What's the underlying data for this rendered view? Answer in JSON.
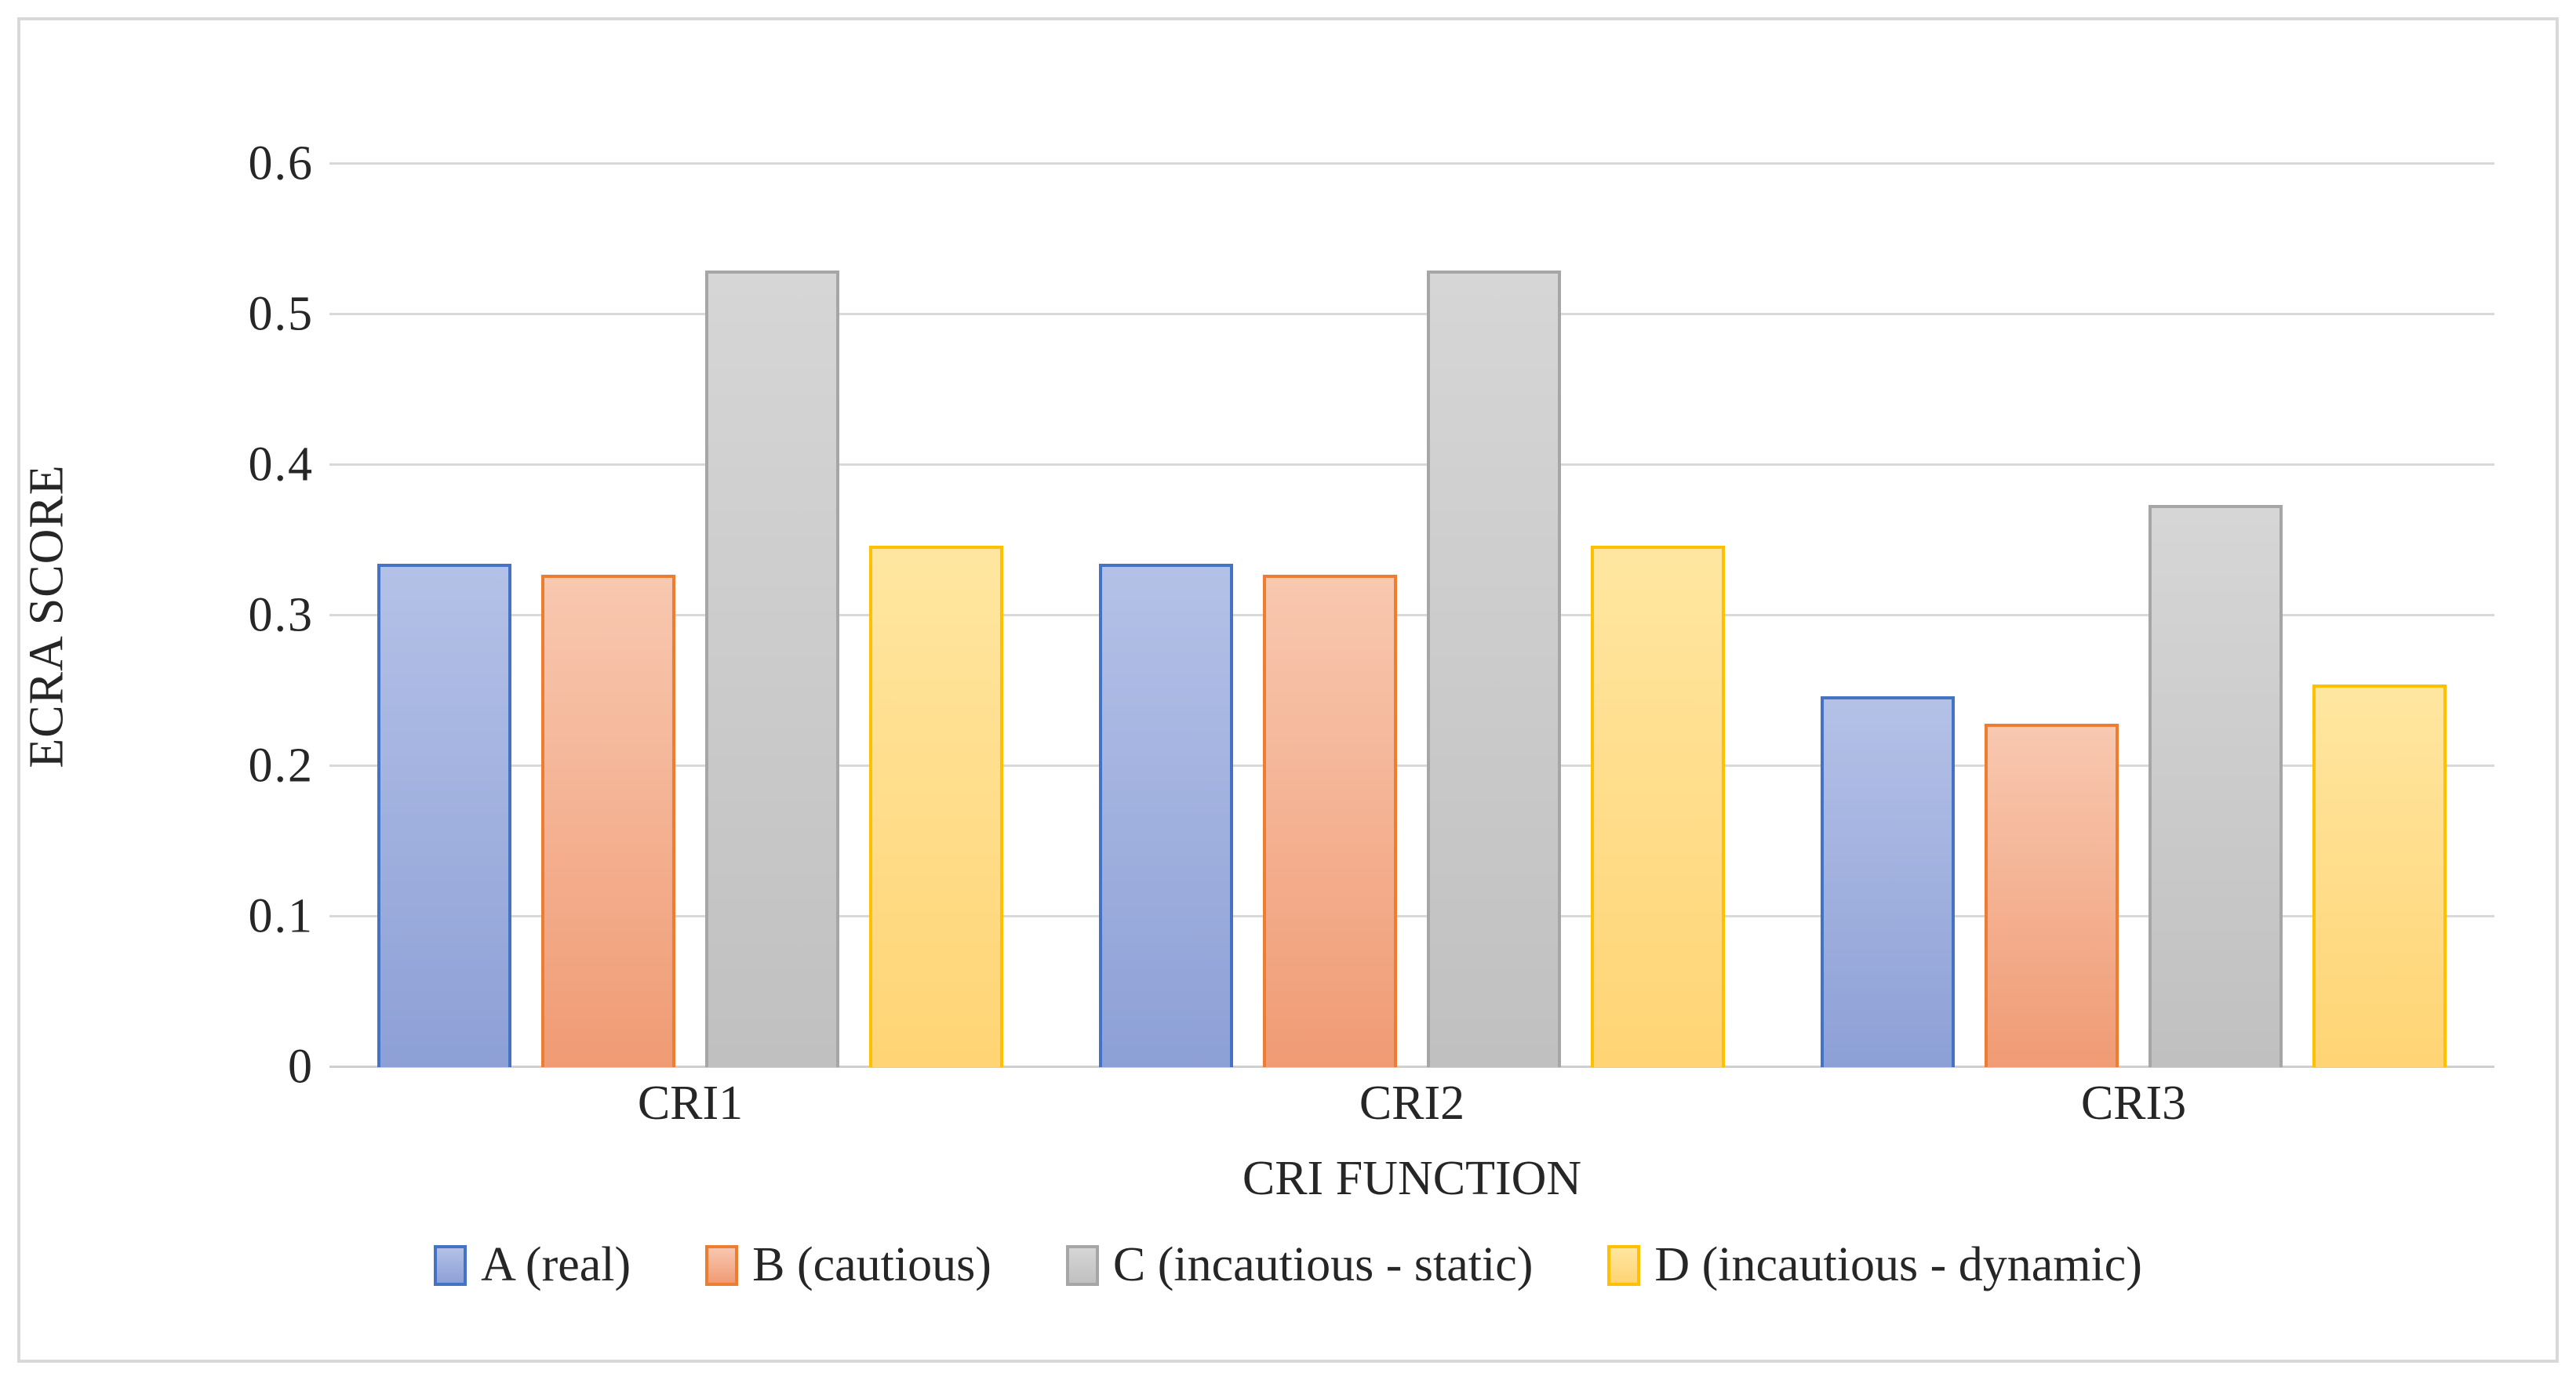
{
  "chart_data": {
    "type": "bar",
    "title": "",
    "categories": [
      "CRI1",
      "CRI2",
      "CRI3"
    ],
    "series": [
      {
        "name": "A (real)",
        "values": [
          0.332,
          0.332,
          0.244
        ],
        "border": "#4472C4",
        "fill_top": "#B4C1E7",
        "fill_bottom": "#8DA0D6"
      },
      {
        "name": "B (cautious)",
        "values": [
          0.325,
          0.325,
          0.226
        ],
        "border": "#ED7D31",
        "fill_top": "#F8C8B0",
        "fill_bottom": "#F09B74"
      },
      {
        "name": "C (incautious - static)",
        "values": [
          0.527,
          0.527,
          0.371
        ],
        "border": "#A6A6A6",
        "fill_top": "#D6D6D6",
        "fill_bottom": "#C0C0C0"
      },
      {
        "name": "D (incautious - dynamic)",
        "values": [
          0.344,
          0.344,
          0.252
        ],
        "border": "#FFC000",
        "fill_top": "#FFE6A0",
        "fill_bottom": "#FFD474"
      }
    ],
    "xlabel": "CRI FUNCTION",
    "ylabel": "ECRA SCORE",
    "ylim": [
      0,
      0.63
    ],
    "yticks": [
      0,
      0.1,
      0.2,
      0.3,
      0.4,
      0.5,
      0.6
    ],
    "ytick_labels": [
      "0",
      "0.1",
      "0.2",
      "0.3",
      "0.4",
      "0.5",
      "0.6"
    ],
    "grid": true,
    "legend_position": "bottom",
    "gridline_color": "#D9D9D9",
    "axis_line_color": "#CFCFCF",
    "text_color": "#262626"
  }
}
